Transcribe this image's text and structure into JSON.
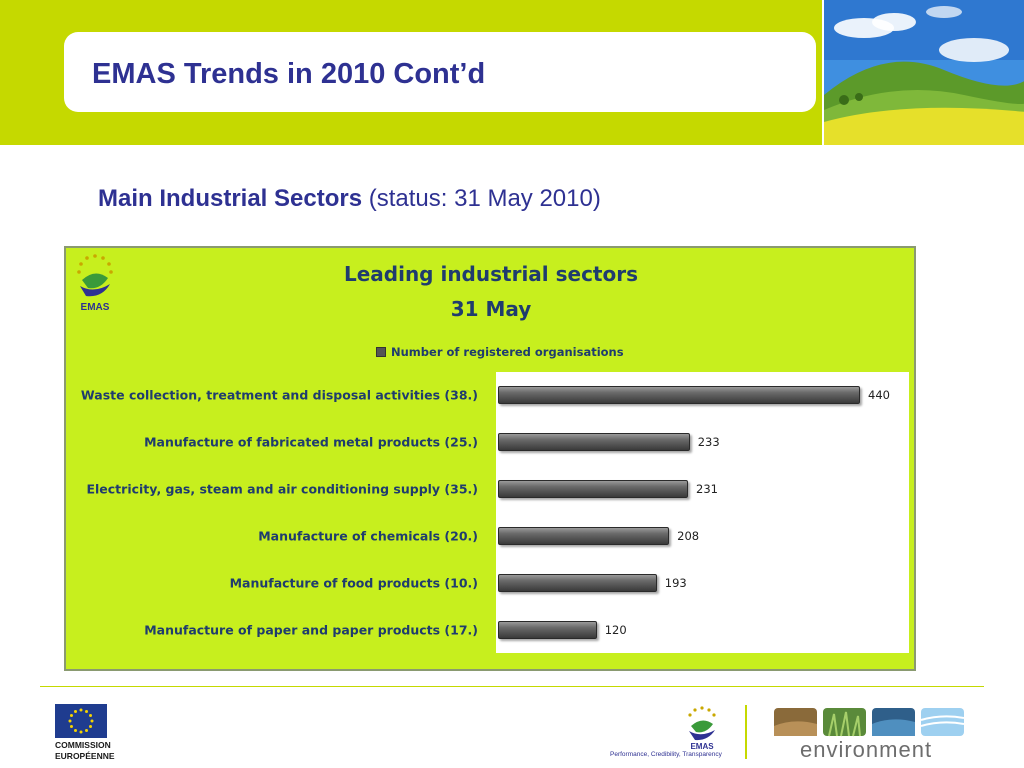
{
  "header": {
    "title": "EMAS Trends in 2010 Cont’d"
  },
  "subtitle": {
    "bold": "Main Industrial Sectors",
    "normal": " (status: 31 May 2010)"
  },
  "chart_data": {
    "type": "bar",
    "orientation": "horizontal",
    "title_line1": "Leading industrial sectors",
    "title_line2": "31 May",
    "logo_text": "EMAS",
    "series": [
      {
        "name": "Number of registered organisations",
        "values": [
          440,
          233,
          231,
          208,
          193,
          120
        ]
      }
    ],
    "categories": [
      "Waste collection, treatment and disposal activities (38.)",
      "Manufacture of fabricated metal products (25.)",
      "Electricity, gas, steam and air conditioning supply (35.)",
      "Manufacture of chemicals (20.)",
      "Manufacture of food products (10.)",
      "Manufacture of paper and paper products (17.)"
    ],
    "xlim": [
      0,
      480
    ],
    "legend_position": "top"
  },
  "footer": {
    "ec_line1": "COMMISSION",
    "ec_line2": "EUROPÉENNE",
    "emas_logo_text": "EMAS",
    "emas_tagline": "Performance, Credibility, Transparency",
    "environment_text": "environment"
  },
  "colors": {
    "band": "#c5d900",
    "title": "#2e3192",
    "chart_bg": "#c7ef1e",
    "chart_text": "#1f3c6e"
  }
}
